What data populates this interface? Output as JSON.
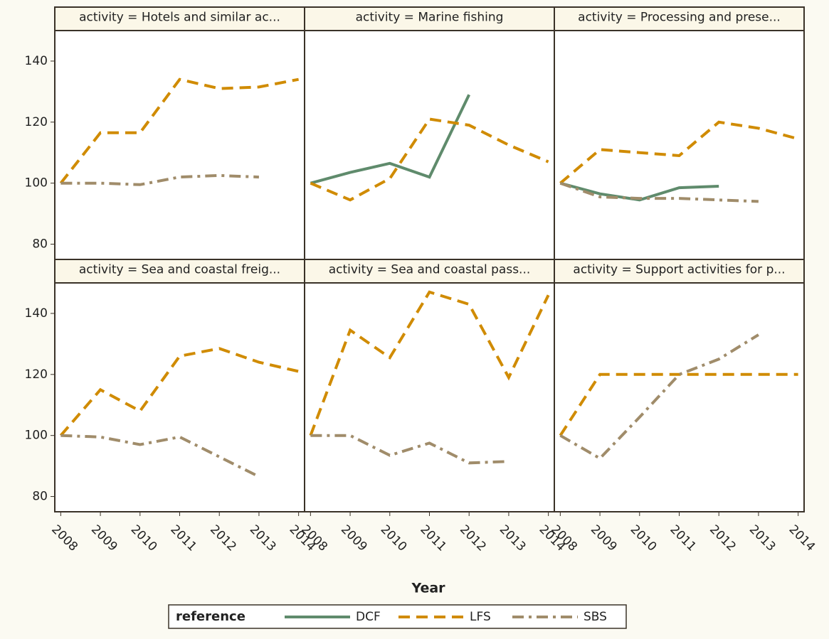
{
  "axes": {
    "xlabel": "Year",
    "xlim": [
      2007.85,
      2014.15
    ],
    "xticks": [
      2008,
      2009,
      2010,
      2011,
      2012,
      2013,
      2014
    ],
    "ylim": [
      75,
      150
    ],
    "yticks": [
      80,
      100,
      120,
      140
    ]
  },
  "legend": {
    "title": "reference",
    "entries": [
      {
        "name": "DCF",
        "color": "#5f8b6c",
        "dash": "none"
      },
      {
        "name": "LFS",
        "color": "#d08b00",
        "dash": "16,9"
      },
      {
        "name": "SBS",
        "color": "#a08c6a",
        "dash": "16,7,4,7"
      }
    ]
  },
  "chart_data": [
    {
      "type": "line",
      "title": "activity = Hotels and similar ac...",
      "x": [
        2008,
        2009,
        2010,
        2011,
        2012,
        2013,
        2014
      ],
      "series": [
        {
          "name": "LFS",
          "values": [
            100,
            116.5,
            116.5,
            134,
            131,
            131.5,
            134
          ]
        },
        {
          "name": "SBS",
          "values": [
            100,
            100,
            99.5,
            102,
            102.5,
            102,
            null
          ]
        }
      ]
    },
    {
      "type": "line",
      "title": "activity = Marine fishing",
      "x": [
        2008,
        2009,
        2010,
        2011,
        2012,
        2013,
        2014
      ],
      "series": [
        {
          "name": "DCF",
          "values": [
            100,
            103.5,
            106.5,
            102,
            129,
            null,
            null
          ]
        },
        {
          "name": "LFS",
          "values": [
            100,
            94.5,
            101.5,
            121,
            119,
            112.5,
            107
          ]
        }
      ]
    },
    {
      "type": "line",
      "title": "activity = Processing and prese...",
      "x": [
        2008,
        2009,
        2010,
        2011,
        2012,
        2013,
        2014
      ],
      "series": [
        {
          "name": "DCF",
          "values": [
            100,
            96.5,
            94.5,
            98.5,
            99,
            null,
            null
          ]
        },
        {
          "name": "LFS",
          "values": [
            100,
            111,
            110,
            109,
            120,
            118,
            114.5
          ]
        },
        {
          "name": "SBS",
          "values": [
            100,
            95.5,
            95,
            95,
            94.5,
            94,
            null
          ]
        }
      ]
    },
    {
      "type": "line",
      "title": "activity = Sea and coastal freig...",
      "x": [
        2008,
        2009,
        2010,
        2011,
        2012,
        2013,
        2014
      ],
      "series": [
        {
          "name": "LFS",
          "values": [
            100,
            115,
            108,
            126,
            128.5,
            124,
            121
          ]
        },
        {
          "name": "SBS",
          "values": [
            100,
            99.5,
            97,
            99.5,
            93,
            86.5,
            null
          ]
        }
      ]
    },
    {
      "type": "line",
      "title": "activity = Sea and coastal pass...",
      "x": [
        2008,
        2009,
        2010,
        2011,
        2012,
        2013,
        2014
      ],
      "series": [
        {
          "name": "LFS",
          "values": [
            100,
            134.5,
            125.5,
            147,
            143,
            119,
            146
          ]
        },
        {
          "name": "SBS",
          "values": [
            100,
            100,
            93.5,
            97.5,
            91,
            91.5,
            null
          ]
        }
      ]
    },
    {
      "type": "line",
      "title": "activity = Support activities for p...",
      "x": [
        2008,
        2009,
        2010,
        2011,
        2012,
        2013,
        2014
      ],
      "series": [
        {
          "name": "LFS",
          "values": [
            100,
            120,
            120,
            120,
            120,
            120,
            120
          ]
        },
        {
          "name": "SBS",
          "values": [
            100,
            92.5,
            106,
            120,
            125,
            133,
            null
          ]
        }
      ]
    }
  ]
}
